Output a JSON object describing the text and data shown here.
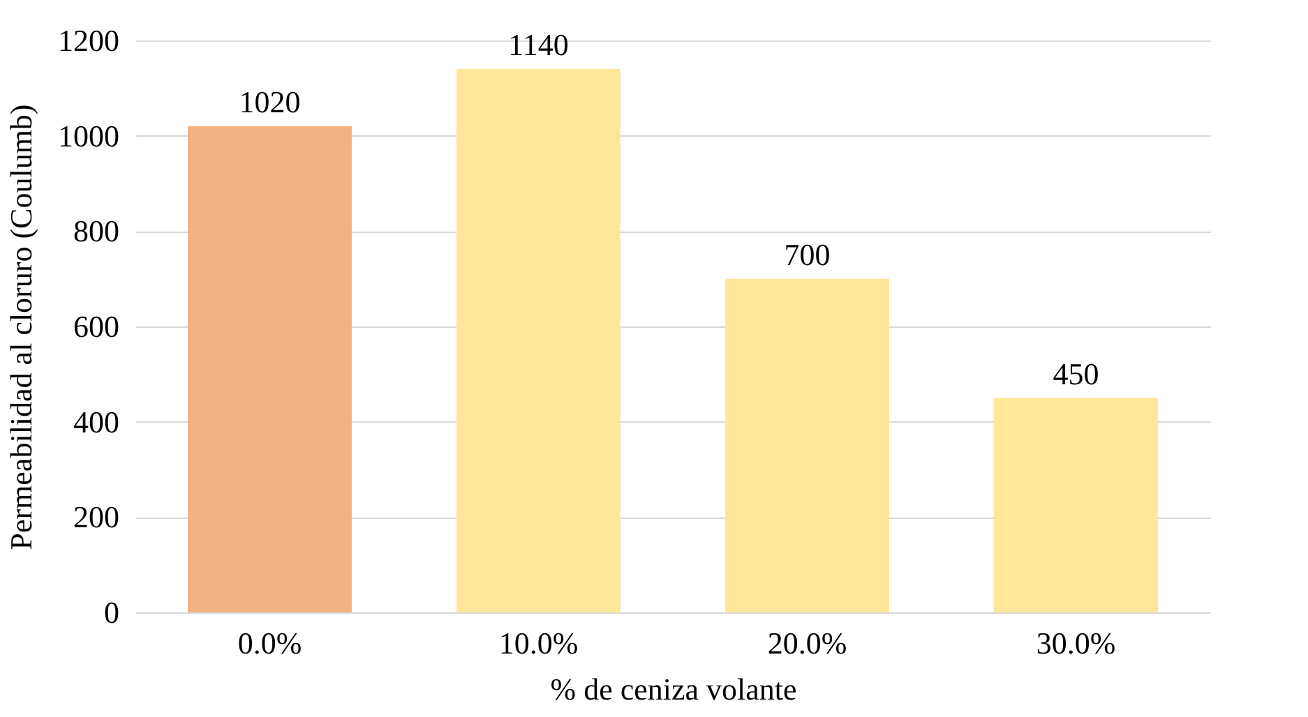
{
  "chart_data": {
    "type": "bar",
    "xlabel": "% de ceniza volante",
    "ylabel": "Permeabilidad al cloruro (Coulumb)",
    "categories": [
      "0.0%",
      "10.0%",
      "20.0%",
      "30.0%"
    ],
    "values": [
      1020,
      1140,
      700,
      450
    ],
    "colors": [
      "#f4b183",
      "#ffe699",
      "#ffe699",
      "#ffe699"
    ],
    "ylim": [
      0,
      1200
    ],
    "yticks": [
      0,
      200,
      400,
      600,
      800,
      1000,
      1200
    ],
    "grid": "y",
    "data_labels": true
  }
}
